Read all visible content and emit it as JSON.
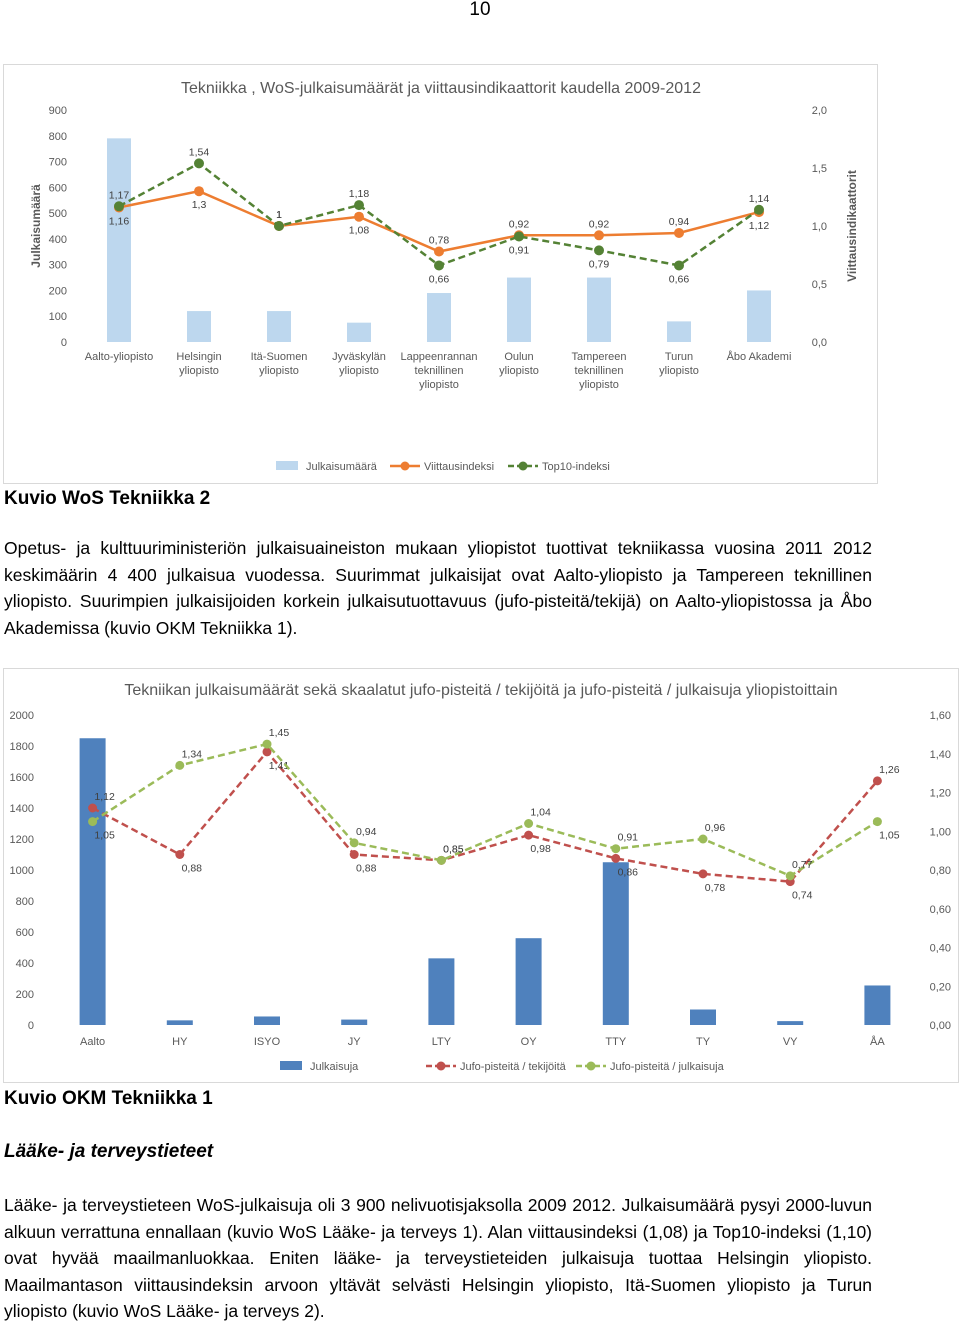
{
  "page_number": "10",
  "chart1": {
    "frame_name": "wos-tekniikka-chart",
    "chart_data": {
      "type": "bar",
      "title": "Tekniikka , WoS-julkaisumäärät ja viittausindikaattorit kaudella 2009-2012",
      "ylabel": "Julkaisumäärä",
      "y2label": "Viittausindikaattorit",
      "ylim": [
        0,
        900
      ],
      "y2lim": [
        0,
        2.0
      ],
      "yticks": [
        "0",
        "100",
        "200",
        "300",
        "400",
        "500",
        "600",
        "700",
        "800",
        "900"
      ],
      "y2ticks": [
        "0,0",
        "0,5",
        "1,0",
        "1,5",
        "2,0"
      ],
      "categories": [
        "Aalto-yliopisto",
        "Helsingin yliopisto",
        "Itä-Suomen yliopisto",
        "Jyväskylän yliopisto",
        "Lappeenrannan teknillinen yliopisto",
        "Oulun yliopisto",
        "Tampereen teknillinen yliopisto",
        "Turun yliopisto",
        "Åbo Akademi"
      ],
      "grid": false,
      "legend_position": "bottom",
      "series": [
        {
          "name": "Julkaisumäärä",
          "type": "bar",
          "axis": "left",
          "color": "#bdd7ee",
          "values": [
            790,
            120,
            120,
            75,
            190,
            250,
            250,
            80,
            200
          ]
        },
        {
          "name": "Viittausindeksi",
          "type": "line",
          "axis": "right",
          "color": "#ed7d31",
          "values": [
            1.16,
            1.3,
            1.0,
            1.08,
            0.78,
            0.92,
            0.92,
            0.94,
            1.12
          ],
          "labels": [
            "1,16",
            "1,3",
            "1",
            "1,08",
            "0,78",
            "0,92",
            "0,92",
            "0,94",
            "1,12"
          ]
        },
        {
          "name": "Top10-indeksi",
          "type": "line",
          "axis": "right",
          "color": "#548235",
          "dashed": true,
          "values": [
            1.17,
            1.54,
            1.0,
            1.18,
            0.66,
            0.91,
            0.79,
            0.66,
            1.14
          ],
          "labels": [
            "1,17",
            "1,54",
            "1",
            "1,18",
            "0,66",
            "0,91",
            "0,79",
            "0,66",
            "1,14"
          ]
        }
      ]
    }
  },
  "caption1": "Kuvio WoS Tekniikka 2",
  "paragraph1": "Opetus- ja kulttuuriministeriön julkaisuaineiston mukaan yliopistot tuottivat tekniikassa vuosina 2011 2012 keskimäärin 4 400 julkaisua vuodessa. Suurimmat julkaisijat ovat Aalto-yliopisto ja Tampereen teknillinen yliopisto. Suurimpien julkaisijoiden korkein julkaisutuottavuus (jufo-pisteitä/tekijä) on Aalto-yliopistossa ja Åbo Akademissa (kuvio OKM Tekniikka 1).",
  "chart2": {
    "frame_name": "okm-tekniikka-chart",
    "chart_data": {
      "type": "bar",
      "title": "Tekniikan julkaisumäärät sekä skaalatut jufo-pisteitä / tekijöitä ja jufo-pisteitä / julkaisuja yliopistoittain",
      "ylim": [
        0,
        2000
      ],
      "y2lim": [
        0,
        1.6
      ],
      "yticks": [
        "0",
        "200",
        "400",
        "600",
        "800",
        "1000",
        "1200",
        "1400",
        "1600",
        "1800",
        "2000"
      ],
      "y2ticks": [
        "0,00",
        "0,20",
        "0,40",
        "0,60",
        "0,80",
        "1,00",
        "1,20",
        "1,40",
        "1,60"
      ],
      "categories": [
        "Aalto",
        "HY",
        "ISYO",
        "JY",
        "LTY",
        "OY",
        "TTY",
        "TY",
        "VY",
        "ÅA"
      ],
      "grid": false,
      "legend_position": "bottom",
      "series": [
        {
          "name": "Julkaisuja",
          "type": "bar",
          "axis": "left",
          "color": "#4f81bd",
          "values": [
            1850,
            30,
            55,
            35,
            430,
            560,
            1050,
            100,
            25,
            255
          ]
        },
        {
          "name": "Jufo-pisteitä / tekijöitä",
          "type": "line",
          "axis": "right",
          "color": "#c0504d",
          "dashed": true,
          "values": [
            1.12,
            0.88,
            1.41,
            0.88,
            0.85,
            0.98,
            0.86,
            0.78,
            0.74,
            1.26
          ],
          "labels": [
            "1,12",
            "0,88",
            "1,41",
            "0,88",
            "0,85",
            "0,98",
            "0,86",
            "0,78",
            "0,74",
            "1,26"
          ]
        },
        {
          "name": "Jufo-pisteitä / julkaisuja",
          "type": "line",
          "axis": "right",
          "color": "#9bbb59",
          "dashed": true,
          "values": [
            1.05,
            1.34,
            1.45,
            0.94,
            0.85,
            1.04,
            0.91,
            0.96,
            0.77,
            1.05
          ],
          "labels": [
            "1,05",
            "1,34",
            "1,45",
            "0,94",
            "0,85",
            "1,04",
            "0,91",
            "0,96",
            "0,77",
            "1,05"
          ]
        }
      ]
    }
  },
  "caption2": "Kuvio OKM Tekniikka 1",
  "section_heading": "Lääke- ja terveystieteet",
  "paragraph2": "Lääke- ja terveystieteen WoS-julkaisuja oli 3 900 nelivuotisjaksolla 2009 2012. Julkaisumäärä pysyi 2000-luvun alkuun verrattuna ennallaan (kuvio WoS Lääke- ja terveys 1). Alan viittausindeksi (1,08) ja Top10-indeksi (1,10) ovat hyvää maailmanluokkaa.  Eniten lääke- ja terveystieteiden julkaisuja tuottaa Helsingin yliopisto. Maailmantason viittausindeksin arvoon yltävät selvästi Helsingin yliopisto, Itä-Suomen yliopisto ja Turun yliopisto (kuvio WoS Lääke- ja terveys 2)."
}
